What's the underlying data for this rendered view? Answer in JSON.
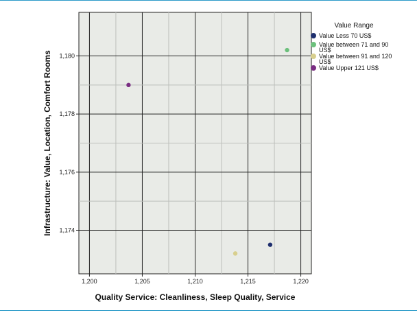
{
  "chart_data": {
    "type": "scatter",
    "xlabel": "Quality Service: Cleanliness, Sleep Quality, Service",
    "ylabel": "Infrastructure: Value, Location, Comfort Rooms",
    "xlim": [
      1.199,
      1.221
    ],
    "ylim": [
      1.1725,
      1.1815
    ],
    "x_ticks": [
      1.2,
      1.205,
      1.21,
      1.215,
      1.22
    ],
    "x_tick_labels": [
      "1,200",
      "1,205",
      "1,210",
      "1,215",
      "1,220"
    ],
    "y_ticks": [
      1.174,
      1.176,
      1.178,
      1.18
    ],
    "y_tick_labels": [
      "1,174",
      "1,176",
      "1,178",
      "1,180"
    ],
    "grid": true,
    "legend": {
      "title": "Value Range",
      "placement": "right",
      "entries": [
        {
          "label_lines": [
            "Value Less 70 US$"
          ],
          "color": "#1f2f6e"
        },
        {
          "label_lines": [
            "Value between 71 and 90",
            "US$"
          ],
          "color": "#6cc07c"
        },
        {
          "label_lines": [
            "Value between 91 and 120",
            "US$"
          ],
          "color": "#d8cf8e"
        },
        {
          "label_lines": [
            "Value Upper 121 US$"
          ],
          "color": "#7a2e83"
        }
      ]
    },
    "series": [
      {
        "name": "Value Less 70 US$",
        "color": "#1f2f6e",
        "points": [
          {
            "x": 1.2171,
            "y": 1.1735
          }
        ]
      },
      {
        "name": "Value between 71 and 90 US$",
        "color": "#6cc07c",
        "points": [
          {
            "x": 1.2187,
            "y": 1.1802
          }
        ]
      },
      {
        "name": "Value between 91 and 120 US$",
        "color": "#d8cf8e",
        "points": [
          {
            "x": 1.2138,
            "y": 1.1732
          }
        ]
      },
      {
        "name": "Value Upper 121 US$",
        "color": "#7a2e83",
        "points": [
          {
            "x": 1.2037,
            "y": 1.179
          }
        ]
      }
    ]
  }
}
